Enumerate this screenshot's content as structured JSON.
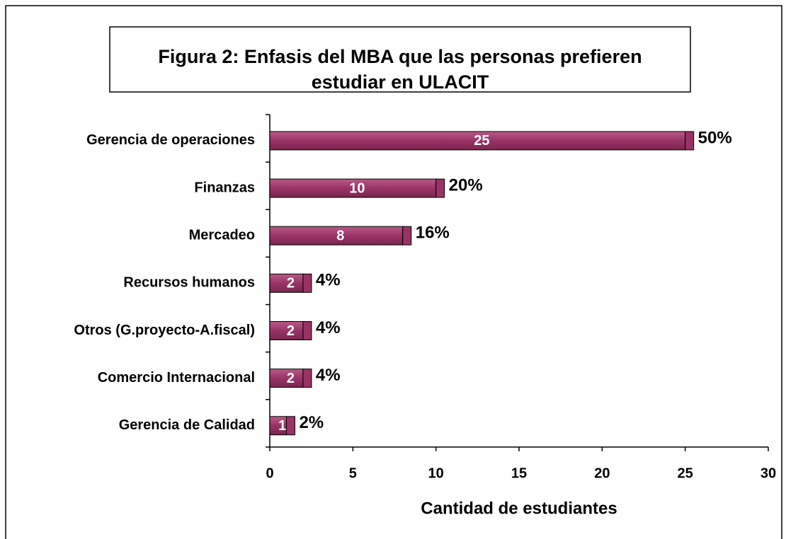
{
  "chart_data": {
    "type": "bar",
    "orientation": "horizontal",
    "title": [
      "Figura 2: Enfasis del MBA que las personas prefieren",
      "estudiar en ULACIT"
    ],
    "x_label": "Cantidad de estudiantes",
    "categories": [
      "Gerencia de operaciones",
      "Finanzas",
      "Mercadeo",
      "Recursos humanos",
      "Otros (G.proyecto-A.fiscal)",
      "Comercio Internacional",
      "Gerencia de Calidad"
    ],
    "values": [
      25,
      10,
      8,
      2,
      2,
      2,
      1
    ],
    "share_labels": [
      "50%",
      "20%",
      "16%",
      "4%",
      "4%",
      "4%",
      "2%"
    ],
    "color": "#993366",
    "xlim": [
      0,
      30
    ],
    "xticks": [
      0,
      5,
      10,
      15,
      20,
      25,
      30
    ]
  }
}
